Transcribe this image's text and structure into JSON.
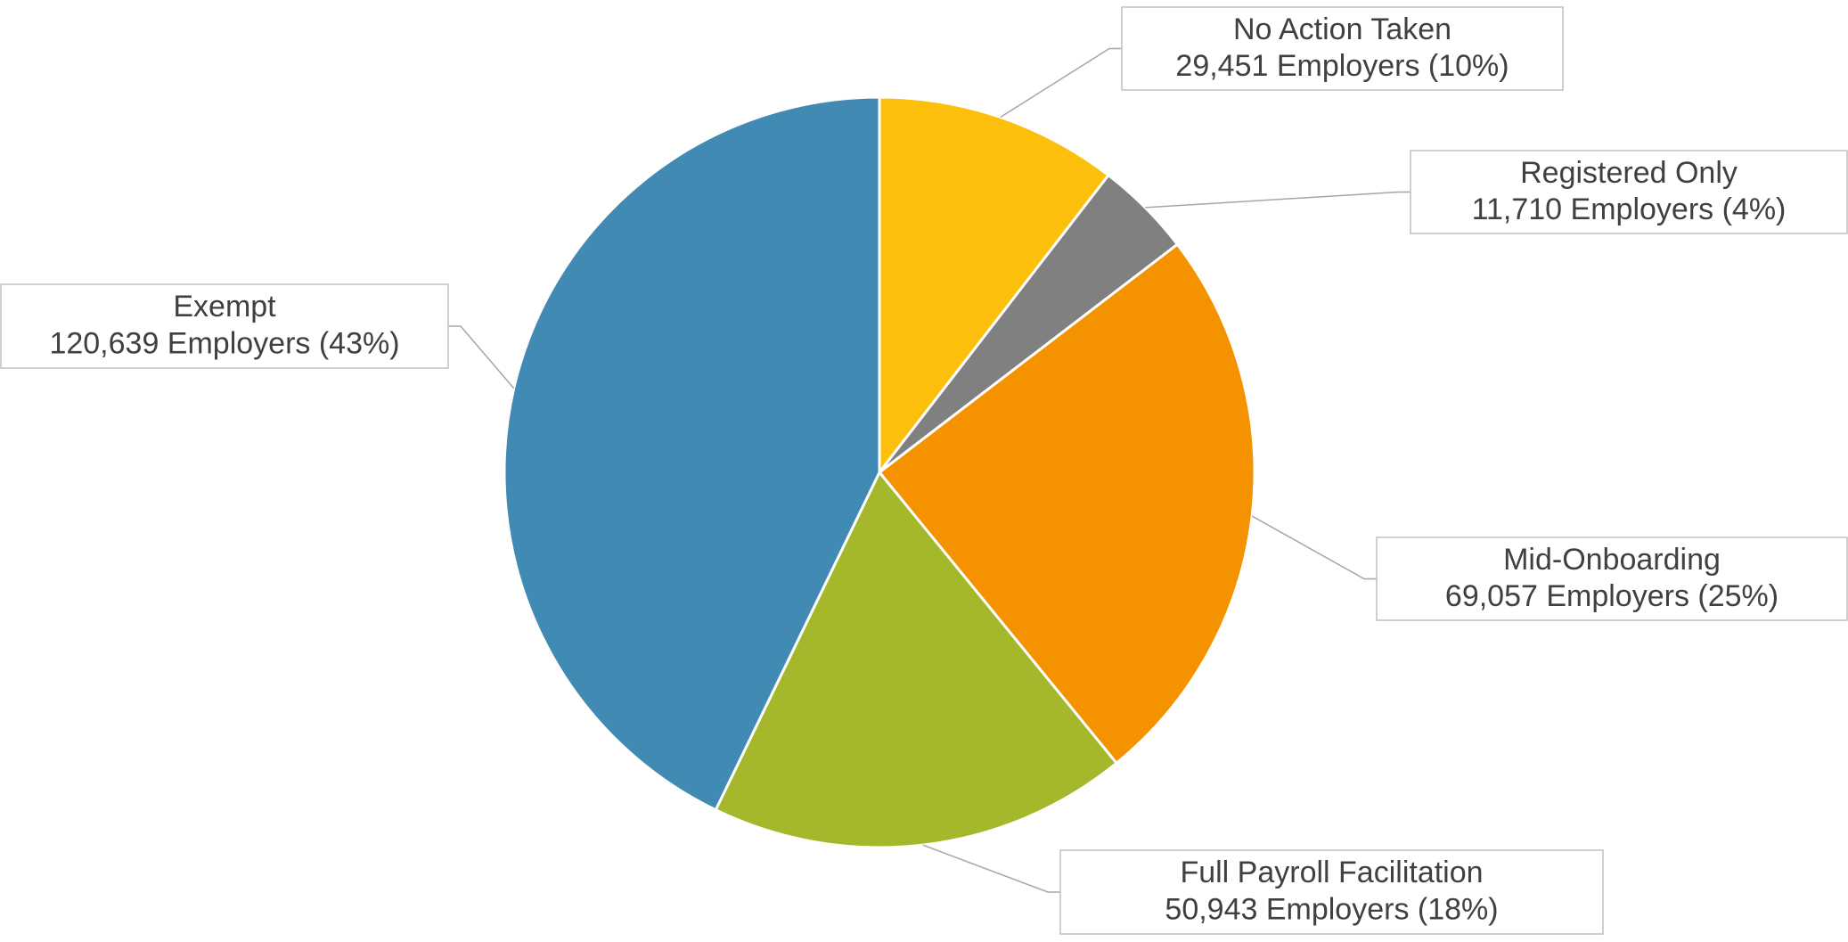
{
  "chart_data": {
    "type": "pie",
    "categories": [
      "No Action Taken",
      "Registered Only",
      "Mid-Onboarding",
      "Full Payroll Facilitation",
      "Exempt"
    ],
    "values": [
      29451,
      11710,
      69057,
      50943,
      120639
    ],
    "value_labels": [
      "29,451 Employers (10%)",
      "11,710 Employers (4%)",
      "69,057 Employers (25%)",
      "50,943 Employers (18%)",
      "120,639 Employers (43%)"
    ],
    "colors": [
      "#fcc00c",
      "#808080",
      "#f59200",
      "#a5b72a",
      "#418ab3"
    ]
  }
}
